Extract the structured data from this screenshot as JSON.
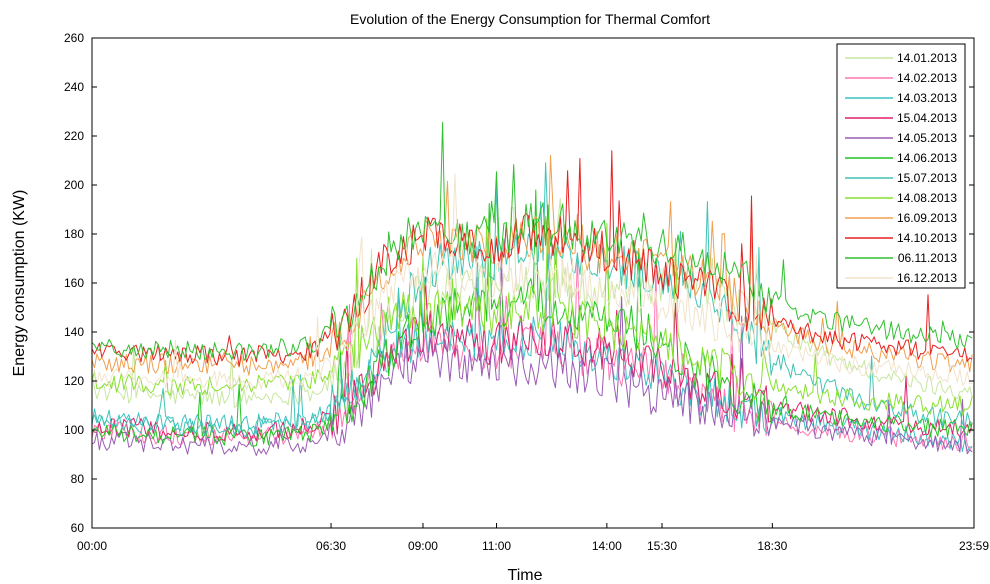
{
  "chart_data": {
    "type": "line",
    "title": "Evolution of the Energy Consumption for Thermal Comfort",
    "xlabel": "Time",
    "ylabel": "Energy consumption (KW)",
    "xlim": [
      "00:00",
      "23:59"
    ],
    "ylim": [
      60,
      260
    ],
    "yticks": [
      60,
      80,
      100,
      120,
      140,
      160,
      180,
      200,
      220,
      240,
      260
    ],
    "xticks": [
      "00:00",
      "06:30",
      "09:00",
      "11:00",
      "14:00",
      "15:30",
      "18:30",
      "23:59"
    ],
    "grid": false,
    "legend_position": "top-right",
    "series": [
      {
        "name": "14.01.2013",
        "color": "#c8e6a0",
        "x": [
          "00:00",
          "02:00",
          "04:00",
          "06:00",
          "07:00",
          "08:00",
          "09:00",
          "10:00",
          "11:00",
          "12:00",
          "13:00",
          "14:00",
          "15:00",
          "16:00",
          "17:00",
          "18:00",
          "19:00",
          "20:00",
          "21:00",
          "22:00",
          "23:00",
          "23:59"
        ],
        "values": [
          116,
          114,
          113,
          115,
          125,
          145,
          158,
          160,
          158,
          162,
          160,
          158,
          160,
          160,
          155,
          148,
          138,
          130,
          125,
          120,
          118,
          116
        ]
      },
      {
        "name": "14.02.2013",
        "color": "#ff77b4",
        "x": [
          "00:00",
          "02:00",
          "04:00",
          "06:00",
          "07:00",
          "08:00",
          "09:00",
          "10:00",
          "11:00",
          "12:00",
          "13:00",
          "14:00",
          "15:00",
          "16:00",
          "17:00",
          "18:00",
          "19:00",
          "20:00",
          "21:00",
          "22:00",
          "23:00",
          "23:59"
        ],
        "values": [
          100,
          98,
          97,
          99,
          108,
          125,
          135,
          132,
          130,
          135,
          132,
          128,
          125,
          118,
          110,
          105,
          103,
          100,
          98,
          97,
          96,
          95
        ]
      },
      {
        "name": "14.03.2013",
        "color": "#3cc2c2",
        "x": [
          "00:00",
          "02:00",
          "04:00",
          "06:00",
          "07:00",
          "08:00",
          "09:00",
          "10:00",
          "11:00",
          "12:00",
          "13:00",
          "14:00",
          "15:00",
          "16:00",
          "17:00",
          "18:00",
          "19:00",
          "20:00",
          "21:00",
          "22:00",
          "23:00",
          "23:59"
        ],
        "values": [
          105,
          103,
          102,
          104,
          112,
          128,
          140,
          138,
          136,
          138,
          135,
          130,
          126,
          118,
          112,
          108,
          105,
          102,
          100,
          98,
          96,
          94
        ]
      },
      {
        "name": "15.04.2013",
        "color": "#e0206a",
        "x": [
          "00:00",
          "02:00",
          "04:00",
          "06:00",
          "07:00",
          "08:00",
          "09:00",
          "10:00",
          "11:00",
          "12:00",
          "13:00",
          "14:00",
          "15:00",
          "16:00",
          "17:00",
          "18:00",
          "19:00",
          "20:00",
          "21:00",
          "22:00",
          "23:00",
          "23:59"
        ],
        "values": [
          102,
          100,
          99,
          101,
          110,
          128,
          140,
          138,
          135,
          140,
          136,
          132,
          128,
          122,
          116,
          110,
          108,
          106,
          104,
          102,
          101,
          100
        ]
      },
      {
        "name": "14.05.2013",
        "color": "#9a5cb4",
        "x": [
          "00:00",
          "02:00",
          "04:00",
          "06:00",
          "07:00",
          "08:00",
          "09:00",
          "10:00",
          "11:00",
          "12:00",
          "13:00",
          "14:00",
          "15:00",
          "16:00",
          "17:00",
          "18:00",
          "19:00",
          "20:00",
          "21:00",
          "22:00",
          "23:00",
          "23:59"
        ],
        "values": [
          96,
          94,
          93,
          95,
          104,
          120,
          130,
          128,
          124,
          126,
          124,
          120,
          116,
          112,
          108,
          104,
          102,
          100,
          98,
          96,
          94,
          93
        ]
      },
      {
        "name": "14.06.2013",
        "color": "#22c422",
        "x": [
          "00:00",
          "02:00",
          "04:00",
          "06:00",
          "07:00",
          "08:00",
          "09:00",
          "10:00",
          "11:00",
          "12:00",
          "13:00",
          "14:00",
          "15:00",
          "16:00",
          "17:00",
          "18:00",
          "19:00",
          "20:00",
          "21:00",
          "22:00",
          "23:00",
          "23:59"
        ],
        "values": [
          100,
          98,
          97,
          99,
          110,
          130,
          145,
          150,
          150,
          155,
          150,
          145,
          140,
          130,
          120,
          112,
          108,
          105,
          103,
          102,
          101,
          100
        ]
      },
      {
        "name": "15.07.2013",
        "color": "#40c4b4",
        "x": [
          "00:00",
          "02:00",
          "04:00",
          "06:00",
          "07:00",
          "08:00",
          "09:00",
          "10:00",
          "11:00",
          "12:00",
          "13:00",
          "14:00",
          "15:00",
          "16:00",
          "17:00",
          "18:00",
          "19:00",
          "20:00",
          "21:00",
          "22:00",
          "23:00",
          "23:59"
        ],
        "values": [
          104,
          102,
          101,
          103,
          115,
          140,
          165,
          170,
          170,
          175,
          172,
          168,
          165,
          160,
          150,
          135,
          125,
          118,
          112,
          108,
          105,
          104
        ]
      },
      {
        "name": "14.08.2013",
        "color": "#88e030",
        "x": [
          "00:00",
          "02:00",
          "04:00",
          "06:00",
          "07:00",
          "08:00",
          "09:00",
          "10:00",
          "11:00",
          "12:00",
          "13:00",
          "14:00",
          "15:00",
          "16:00",
          "17:00",
          "18:00",
          "19:00",
          "20:00",
          "21:00",
          "22:00",
          "23:00",
          "23:59"
        ],
        "values": [
          120,
          118,
          118,
          120,
          128,
          145,
          150,
          148,
          146,
          150,
          146,
          142,
          138,
          132,
          126,
          120,
          116,
          114,
          112,
          111,
          110,
          110
        ]
      },
      {
        "name": "16.09.2013",
        "color": "#f0a050",
        "x": [
          "00:00",
          "02:00",
          "04:00",
          "06:00",
          "07:00",
          "08:00",
          "09:00",
          "10:00",
          "11:00",
          "12:00",
          "13:00",
          "14:00",
          "15:00",
          "16:00",
          "17:00",
          "18:00",
          "19:00",
          "20:00",
          "21:00",
          "22:00",
          "23:00",
          "23:59"
        ],
        "values": [
          128,
          127,
          126,
          128,
          140,
          165,
          178,
          176,
          174,
          180,
          176,
          172,
          170,
          165,
          158,
          148,
          140,
          135,
          132,
          130,
          128,
          127
        ]
      },
      {
        "name": "14.10.2013",
        "color": "#e82020",
        "x": [
          "00:00",
          "02:00",
          "04:00",
          "06:00",
          "07:00",
          "08:00",
          "09:00",
          "10:00",
          "11:00",
          "12:00",
          "13:00",
          "14:00",
          "15:00",
          "16:00",
          "17:00",
          "18:00",
          "19:00",
          "20:00",
          "21:00",
          "22:00",
          "23:00",
          "23:59"
        ],
        "values": [
          132,
          131,
          130,
          132,
          145,
          170,
          180,
          178,
          175,
          182,
          178,
          172,
          168,
          162,
          155,
          148,
          142,
          138,
          135,
          133,
          132,
          131
        ]
      },
      {
        "name": "06.11.2013",
        "color": "#30c030",
        "x": [
          "00:00",
          "02:00",
          "04:00",
          "06:00",
          "07:00",
          "08:00",
          "09:00",
          "10:00",
          "11:00",
          "12:00",
          "13:00",
          "14:00",
          "15:00",
          "16:00",
          "17:00",
          "18:00",
          "19:00",
          "20:00",
          "21:00",
          "22:00",
          "23:00",
          "23:59"
        ],
        "values": [
          134,
          133,
          132,
          135,
          148,
          172,
          182,
          180,
          178,
          185,
          182,
          178,
          176,
          172,
          168,
          160,
          150,
          145,
          142,
          140,
          138,
          136
        ]
      },
      {
        "name": "16.12.2013",
        "color": "#f2e4cc",
        "x": [
          "00:00",
          "02:00",
          "04:00",
          "06:00",
          "07:00",
          "08:00",
          "09:00",
          "10:00",
          "11:00",
          "12:00",
          "13:00",
          "14:00",
          "15:00",
          "16:00",
          "17:00",
          "18:00",
          "19:00",
          "20:00",
          "21:00",
          "22:00",
          "23:00",
          "23:59"
        ],
        "values": [
          122,
          121,
          120,
          122,
          135,
          155,
          165,
          163,
          160,
          165,
          162,
          158,
          155,
          150,
          144,
          138,
          132,
          128,
          126,
          124,
          123,
          122
        ]
      }
    ]
  }
}
